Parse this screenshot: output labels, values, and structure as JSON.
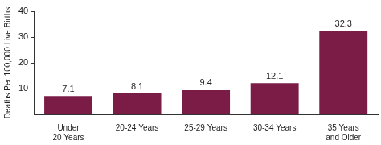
{
  "chart_data": {
    "type": "bar",
    "y_label": "Deaths Per 100,000 Live Births",
    "categories": [
      "Under 20 Years",
      "20-24 Years",
      "25-29 Years",
      "30-34 Years",
      "35 Years and Older"
    ],
    "values": [
      7.1,
      8.1,
      9.4,
      12.1,
      32.3
    ],
    "color": "#7b1c46",
    "ylim": [
      0,
      40
    ],
    "yticks": [
      10,
      20,
      30,
      40
    ],
    "grid": false,
    "data_labels": true
  }
}
